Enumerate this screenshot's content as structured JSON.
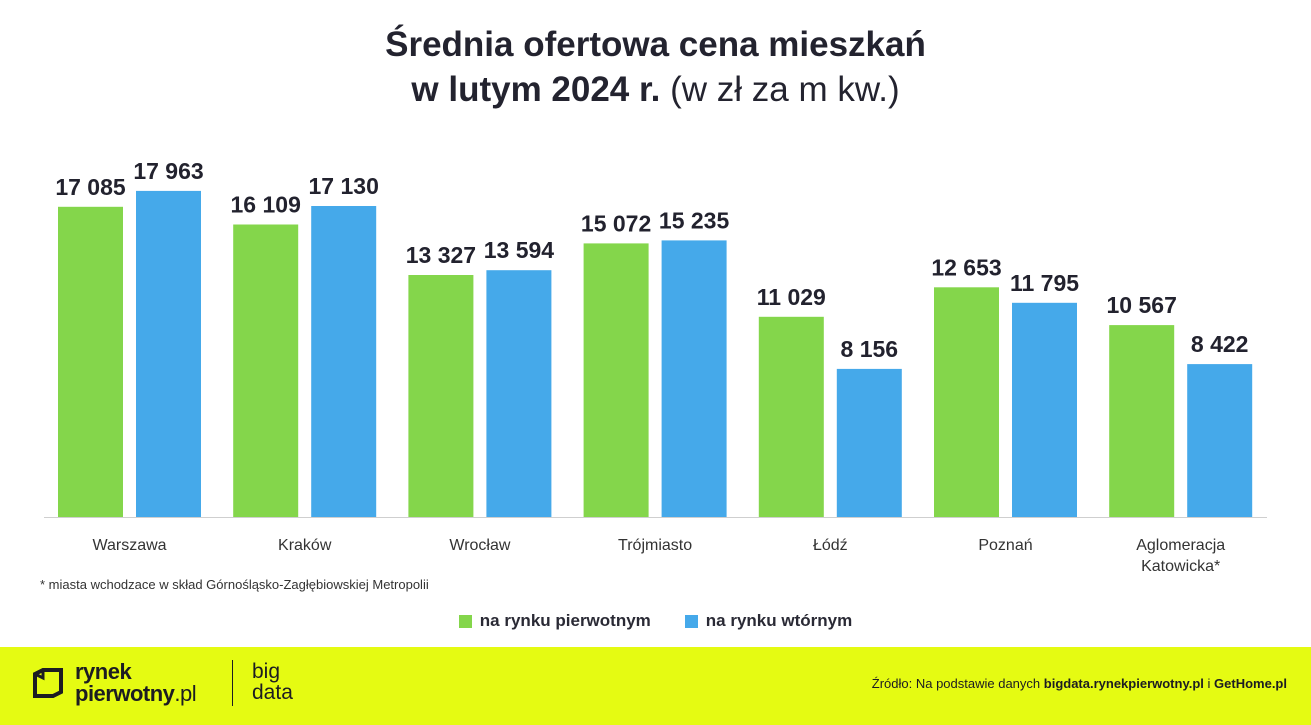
{
  "title": {
    "line1": "Średnia ofertowa cena mieszkań",
    "line2_bold": "w lutym 2024 r.",
    "line2_unit": "(w zł za m kw.)"
  },
  "colors": {
    "primary": "#84d64b",
    "secondary": "#45a9ea",
    "footer_bg": "#e5fb12",
    "text": "#22222e"
  },
  "chart_data": {
    "type": "bar",
    "title": "Średnia ofertowa cena mieszkań w lutym 2024 r. (w zł za m kw.)",
    "xlabel": "",
    "ylabel": "",
    "ylim": [
      0,
      20000
    ],
    "grid": false,
    "categories": [
      "Warszawa",
      "Kraków",
      "Wrocław",
      "Trójmiasto",
      "Łódź",
      "Poznań",
      "Aglomeracja Katowicka*"
    ],
    "series": [
      {
        "name": "na rynku pierwotnym",
        "color": "#84d64b",
        "values": [
          17085,
          16109,
          13327,
          15072,
          11029,
          12653,
          10567
        ],
        "labels": [
          "17 085",
          "16 109",
          "13 327",
          "15 072",
          "11 029",
          "12 653",
          "10 567"
        ]
      },
      {
        "name": "na rynku wtórnym",
        "color": "#45a9ea",
        "values": [
          17963,
          17130,
          13594,
          15235,
          8156,
          11795,
          8422
        ],
        "labels": [
          "17 963",
          "17 130",
          "13 594",
          "15 235",
          "8 156",
          "11 795",
          "8 422"
        ]
      }
    ]
  },
  "footnote": "* miasta wchodzace w skład Górnośląsko-Zagłębiowskiej Metropolii",
  "legend": {
    "primary_label": "na rynku pierwotnym",
    "secondary_label": "na rynku wtórnym"
  },
  "footer": {
    "logo_line1": "rynek",
    "logo_line2_bold": "pierwotny",
    "logo_line2_suffix": ".pl",
    "bigdata_line1": "big",
    "bigdata_line2": "data",
    "source_prefix": "Źródło: Na podstawie danych",
    "source_link1": "bigdata.rynekpierwotny.pl",
    "source_conj": "i",
    "source_link2": "GetHome.pl"
  }
}
